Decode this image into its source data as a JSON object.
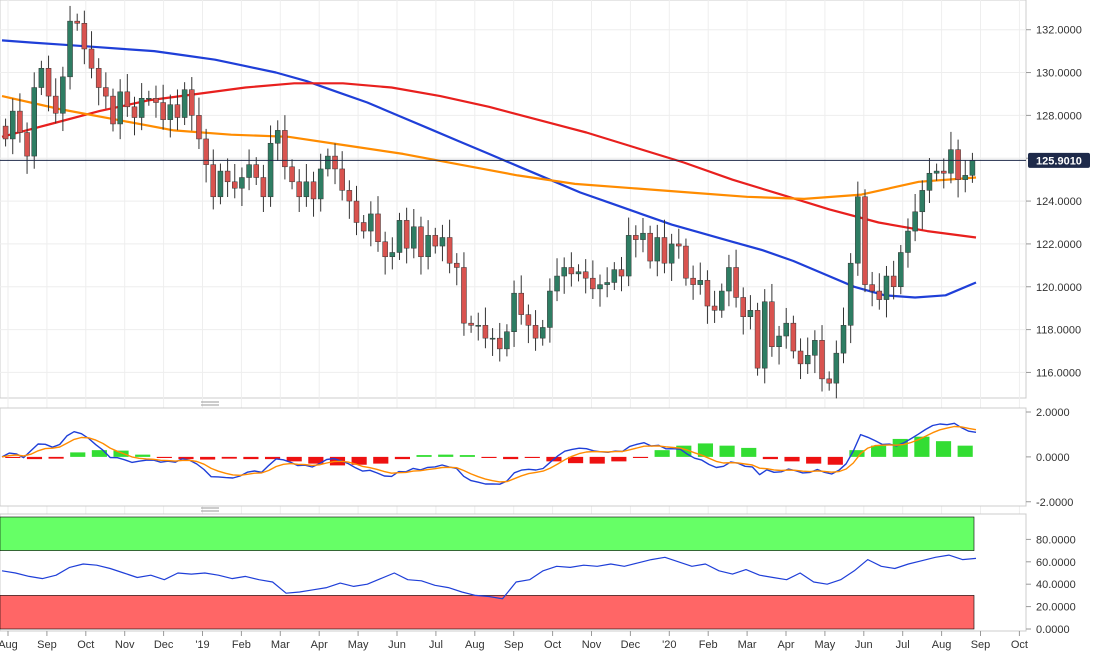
{
  "colors": {
    "up": "#2e7d63",
    "down": "#d9534f",
    "sma_fast": "#1f3fd8",
    "sma_mid": "#e8201e",
    "sma_slow": "#ff8c00",
    "macd_line": "#1f3fd8",
    "macd_signal": "#ff8c00",
    "hist_pos": "#33dd33",
    "hist_neg": "#ee1111",
    "rsi_line": "#1f3fd8",
    "overbought_fill": "#66ff66",
    "oversold_fill": "#ff6666",
    "last_price_bg": "#1e2a4a",
    "grid": "#eeeeee"
  },
  "last_price": {
    "label": "125.9010",
    "value": 125.901
  },
  "chart_data": [
    {
      "type": "candlestick",
      "title": "",
      "x_labels": [
        "Aug",
        "Sep",
        "Oct",
        "Nov",
        "Dec",
        "'19",
        "Feb",
        "Mar",
        "Apr",
        "May",
        "Jun",
        "Jul",
        "Aug",
        "Sep",
        "Oct",
        "Nov",
        "Dec",
        "'20",
        "Feb",
        "Mar",
        "Apr",
        "May",
        "Jun",
        "Jul",
        "Aug",
        "Sep",
        "Oct"
      ],
      "y_ticks": [
        "132.0000",
        "130.0000",
        "128.0000",
        "126.0000",
        "124.0000",
        "122.0000",
        "120.0000",
        "118.0000",
        "116.0000"
      ],
      "ylim": [
        114.9,
        133.2
      ],
      "close": [
        126.9,
        128.2,
        127.2,
        126.1,
        129.3,
        130.2,
        128.9,
        128.1,
        129.8,
        132.4,
        132.3,
        131.1,
        130.2,
        129.3,
        128.9,
        127.6,
        129.1,
        128.4,
        127.9,
        128.8,
        128.8,
        128.6,
        127.8,
        128.5,
        127.9,
        129.2,
        128.0,
        126.9,
        125.7,
        124.2,
        125.4,
        124.9,
        124.6,
        125.1,
        125.7,
        125.1,
        124.2,
        126.7,
        127.3,
        125.6,
        124.9,
        124.2,
        124.9,
        124.1,
        125.5,
        126.1,
        125.5,
        124.5,
        124.0,
        123.0,
        122.6,
        123.4,
        122.1,
        121.4,
        121.6,
        123.1,
        121.8,
        122.8,
        121.4,
        122.4,
        121.9,
        122.3,
        121.1,
        120.9,
        118.3,
        118.2,
        118.2,
        117.6,
        117.6,
        117.1,
        117.9,
        119.7,
        118.7,
        118.2,
        117.6,
        118.1,
        119.8,
        120.5,
        120.9,
        120.6,
        120.7,
        120.4,
        119.9,
        120.1,
        120.2,
        120.8,
        120.5,
        122.4,
        122.2,
        122.5,
        121.2,
        122.3,
        121.1,
        122.0,
        121.9,
        120.4,
        120.1,
        120.3,
        119.1,
        118.9,
        119.8,
        120.9,
        119.5,
        118.6,
        118.9,
        116.2,
        119.3,
        117.2,
        117.7,
        118.3,
        117.0,
        116.4,
        116.8,
        117.5,
        115.7,
        115.5,
        116.9,
        118.2,
        121.1,
        124.2,
        120.1,
        119.8,
        119.4,
        120.5,
        120.0,
        121.6,
        122.6,
        123.5,
        124.5,
        125.3,
        125.4,
        125.3,
        126.4,
        125.0,
        125.2,
        125.9
      ],
      "series": [
        {
          "name": "",
          "color_key": "sma_fast",
          "values": [
            131.5,
            131.4,
            131.3,
            131.2,
            131.1,
            131.0,
            130.8,
            130.6,
            130.3,
            130.0,
            129.6,
            129.1,
            128.6,
            128.0,
            127.4,
            126.8,
            126.2,
            125.6,
            125.0,
            124.4,
            123.9,
            123.4,
            122.9,
            122.5,
            122.1,
            121.7,
            121.2,
            120.6,
            120.0,
            119.6,
            119.5,
            119.6,
            120.2
          ]
        },
        {
          "name": "",
          "color_key": "sma_mid",
          "values": [
            127.0,
            127.6,
            128.2,
            128.7,
            129.0,
            129.3,
            129.5,
            129.5,
            129.3,
            128.9,
            128.4,
            127.8,
            127.2,
            126.5,
            125.8,
            125.0,
            124.3,
            123.6,
            123.0,
            122.6,
            122.3
          ]
        },
        {
          "name": "",
          "color_key": "sma_slow",
          "values": [
            128.9,
            128.3,
            127.8,
            127.3,
            127.1,
            127.0,
            126.6,
            126.2,
            125.7,
            125.2,
            124.8,
            124.6,
            124.4,
            124.2,
            124.1,
            124.3,
            124.9,
            125.1
          ]
        }
      ]
    },
    {
      "type": "macd",
      "y_ticks": [
        "2.0000",
        "0.0000",
        "-2.0000"
      ],
      "ylim": [
        -2.1,
        2.0
      ],
      "histogram": [
        -0.05,
        -0.1,
        -0.08,
        0.2,
        0.3,
        0.28,
        0.1,
        -0.05,
        -0.1,
        -0.12,
        -0.08,
        -0.1,
        -0.1,
        -0.2,
        -0.3,
        -0.38,
        -0.35,
        -0.3,
        -0.1,
        0.08,
        0.1,
        0.08,
        -0.05,
        -0.1,
        -0.05,
        -0.2,
        -0.28,
        -0.3,
        -0.2,
        -0.05,
        0.3,
        0.5,
        0.6,
        0.5,
        0.4,
        -0.1,
        -0.2,
        -0.3,
        -0.35,
        0.3,
        0.5,
        0.8,
        0.9,
        0.7,
        0.5
      ]
    },
    {
      "type": "rsi",
      "y_ticks": [
        "80.0000",
        "60.0000",
        "40.0000",
        "20.0000",
        "0.0000"
      ],
      "ylim": [
        0,
        100
      ],
      "overbought": 70,
      "oversold": 30,
      "values": [
        52,
        50,
        47,
        45,
        48,
        55,
        58,
        57,
        54,
        50,
        46,
        48,
        44,
        50,
        49,
        50,
        48,
        45,
        47,
        44,
        42,
        32,
        33,
        35,
        37,
        41,
        38,
        40,
        45,
        50,
        44,
        43,
        39,
        37,
        33,
        30,
        29,
        27,
        42,
        44,
        52,
        56,
        55,
        57,
        56,
        58,
        56,
        59,
        62,
        64,
        60,
        56,
        58,
        52,
        49,
        53,
        48,
        46,
        44,
        50,
        42,
        40,
        44,
        52,
        62,
        56,
        54,
        58,
        61,
        64,
        66,
        62,
        63
      ]
    }
  ]
}
